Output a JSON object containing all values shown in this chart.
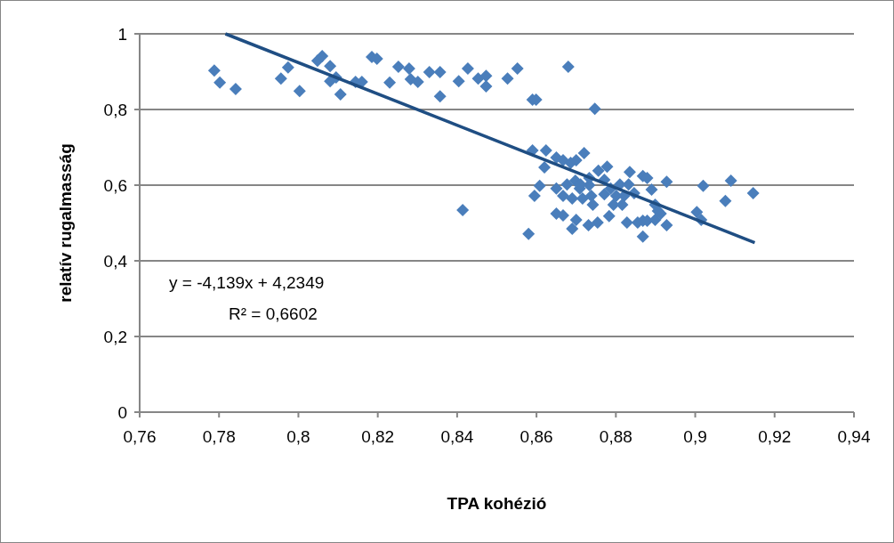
{
  "chart_data": {
    "type": "scatter",
    "xlabel": "TPA kohézió",
    "ylabel": "relatív rugalmasság",
    "xlim": [
      0.76,
      0.94
    ],
    "ylim": [
      0,
      1
    ],
    "xticks": [
      {
        "value": 0.76,
        "label": "0,76"
      },
      {
        "value": 0.78,
        "label": "0,78"
      },
      {
        "value": 0.8,
        "label": "0,8"
      },
      {
        "value": 0.82,
        "label": "0,82"
      },
      {
        "value": 0.84,
        "label": "0,84"
      },
      {
        "value": 0.86,
        "label": "0,86"
      },
      {
        "value": 0.88,
        "label": "0,88"
      },
      {
        "value": 0.9,
        "label": "0,9"
      },
      {
        "value": 0.92,
        "label": "0,92"
      },
      {
        "value": 0.94,
        "label": "0,94"
      }
    ],
    "yticks": [
      0,
      {
        "value": 0.2,
        "label": "0,2"
      },
      {
        "value": 0.4,
        "label": "0,4"
      },
      {
        "value": 0.6,
        "label": "0,6"
      },
      {
        "value": 0.8,
        "label": "0,8"
      },
      1
    ],
    "grid": "y",
    "marker": "diamond",
    "annotations": [
      "y = -4,139x + 4,2349",
      "R² = 0,6602"
    ],
    "series": [
      {
        "color": "#4a7ebb",
        "x": [
          0.7788,
          0.7802,
          0.7842,
          0.7956,
          0.7974,
          0.8003,
          0.8048,
          0.806,
          0.808,
          0.808,
          0.8095,
          0.8106,
          0.8144,
          0.816,
          0.8185,
          0.8198,
          0.823,
          0.8252,
          0.8279,
          0.8283,
          0.8301,
          0.833,
          0.8357,
          0.8357,
          0.8404,
          0.8427,
          0.8453,
          0.8473,
          0.8473,
          0.8527,
          0.8552,
          0.859,
          0.8599,
          0.868,
          0.8747,
          0.859,
          0.8624,
          0.862,
          0.865,
          0.8667,
          0.8686,
          0.872,
          0.87,
          0.8608,
          0.8595,
          0.865,
          0.8667,
          0.8698,
          0.8709,
          0.8716,
          0.869,
          0.8733,
          0.8742,
          0.8756,
          0.8778,
          0.8771,
          0.8787,
          0.8794,
          0.8783,
          0.881,
          0.8821,
          0.8835,
          0.8832,
          0.8846,
          0.8868,
          0.8879,
          0.889,
          0.8928,
          0.865,
          0.8667,
          0.87,
          0.869,
          0.8731,
          0.8754,
          0.8828,
          0.8855,
          0.8868,
          0.8879,
          0.8899,
          0.8928,
          0.8913,
          0.8899,
          0.8906,
          0.8868,
          0.858,
          0.902,
          0.909,
          0.9076,
          0.9146,
          0.9004,
          0.9015,
          0.8414,
          0.8711,
          0.8733,
          0.8771,
          0.8801,
          0.8816,
          0.8677,
          0.8738
        ],
        "values": [
          0.903,
          0.871,
          0.854,
          0.882,
          0.911,
          0.849,
          0.929,
          0.941,
          0.915,
          0.875,
          0.885,
          0.84,
          0.873,
          0.873,
          0.939,
          0.934,
          0.871,
          0.913,
          0.908,
          0.88,
          0.873,
          0.899,
          0.899,
          0.835,
          0.875,
          0.908,
          0.882,
          0.889,
          0.861,
          0.882,
          0.908,
          0.826,
          0.826,
          0.913,
          0.802,
          0.692,
          0.692,
          0.647,
          0.673,
          0.666,
          0.659,
          0.685,
          0.666,
          0.598,
          0.572,
          0.591,
          0.572,
          0.612,
          0.591,
          0.565,
          0.565,
          0.6,
          0.548,
          0.638,
          0.649,
          0.576,
          0.591,
          0.548,
          0.518,
          0.602,
          0.572,
          0.635,
          0.602,
          0.579,
          0.624,
          0.619,
          0.588,
          0.609,
          0.525,
          0.52,
          0.508,
          0.485,
          0.494,
          0.501,
          0.501,
          0.501,
          0.506,
          0.506,
          0.508,
          0.494,
          0.525,
          0.548,
          0.532,
          0.464,
          0.471,
          0.598,
          0.612,
          0.558,
          0.579,
          0.529,
          0.508,
          0.534,
          0.602,
          0.619,
          0.614,
          0.572,
          0.548,
          0.602,
          0.572
        ]
      },
      {
        "type": "line",
        "color": "#1f4e83",
        "marker": "none",
        "x": [
          0.7816,
          0.915
        ],
        "values": [
          1.0,
          0.448
        ]
      }
    ]
  }
}
